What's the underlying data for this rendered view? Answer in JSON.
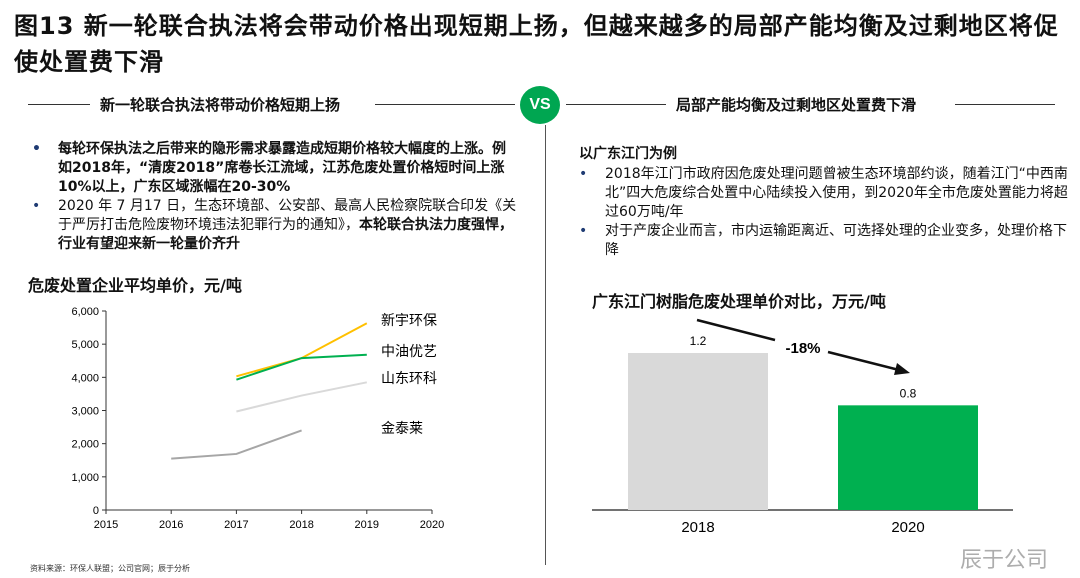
{
  "title": "图13 新一轮联合执法将会带动价格出现短期上扬，但越来越多的局部产能均衡及过剩地区将促使处置费下滑",
  "left": {
    "header": "新一轮联合执法将带动价格短期上扬",
    "bullets": [
      {
        "text": "每轮环保执法之后带来的隐形需求暴露造成短期价格较大幅度的上涨。例如2018年，“清废2018”席卷长江流域，江苏危废处置价格短时间上涨10%以上，广东区域涨幅在20-30%"
      },
      {
        "text": "2020 年 7 月17 日，生态环境部、公安部、最高人民检察院联合印发《关于严厉打击危险废物环境违法犯罪行为的通知》，",
        "bold": "本轮联合执法力度强悍，行业有望迎来新一轮量价齐升"
      }
    ]
  },
  "vs": "VS",
  "right": {
    "header": "局部产能均衡及过剩地区处置费下滑",
    "subtitle": "以广东江门为例",
    "bullets": [
      {
        "text": "2018年江门市政府因危废处理问题曾被生态环境部约谈，随着江门“中西南北”四大危废综合处置中心陆续投入使用，到2020年全市危废处置能力将超过60万吨/年"
      },
      {
        "text": "对于产废企业而言，市内运输距离近、可选择处理的企业变多，处理价格下降"
      }
    ]
  },
  "chart_data": [
    {
      "type": "line",
      "title": "危废处置企业平均单价，元/吨",
      "xlim": [
        2015,
        2020
      ],
      "ylim": [
        0,
        6000
      ],
      "xticks": [
        "2015",
        "2016",
        "2017",
        "2018",
        "2019",
        "2020"
      ],
      "yticks": [
        "0",
        "1,000",
        "2,000",
        "3,000",
        "4,000",
        "5,000",
        "6,000"
      ],
      "yvalues": [
        0,
        1000,
        2000,
        3000,
        4000,
        5000,
        6000
      ],
      "series": [
        {
          "name": "新宇环保",
          "color": "#ffc000",
          "x": [
            2017,
            2018,
            2019
          ],
          "values": [
            4030,
            4580,
            5630
          ]
        },
        {
          "name": "中油优艺",
          "color": "#00b050",
          "x": [
            2017,
            2018,
            2019
          ],
          "values": [
            3930,
            4580,
            4680
          ]
        },
        {
          "name": "山东环科",
          "color": "#d9d9d9",
          "x": [
            2017,
            2018,
            2019
          ],
          "values": [
            2970,
            3450,
            3850
          ]
        },
        {
          "name": "金泰莱",
          "color": "#a6a6a6",
          "x": [
            2016,
            2017,
            2018
          ],
          "values": [
            1550,
            1690,
            2400
          ]
        }
      ]
    },
    {
      "type": "bar",
      "title": "广东江门树脂危废处理单价对比，万元/吨",
      "categories": [
        "2018",
        "2020"
      ],
      "values": [
        1.2,
        0.8
      ],
      "labels": [
        "1.2",
        "0.8"
      ],
      "colors": [
        "#d9d9d9",
        "#00b050"
      ],
      "annotation": "-18%"
    }
  ],
  "footer": "资料来源：环保人联盟；公司官网；辰于分析",
  "watermark": "辰于公司"
}
